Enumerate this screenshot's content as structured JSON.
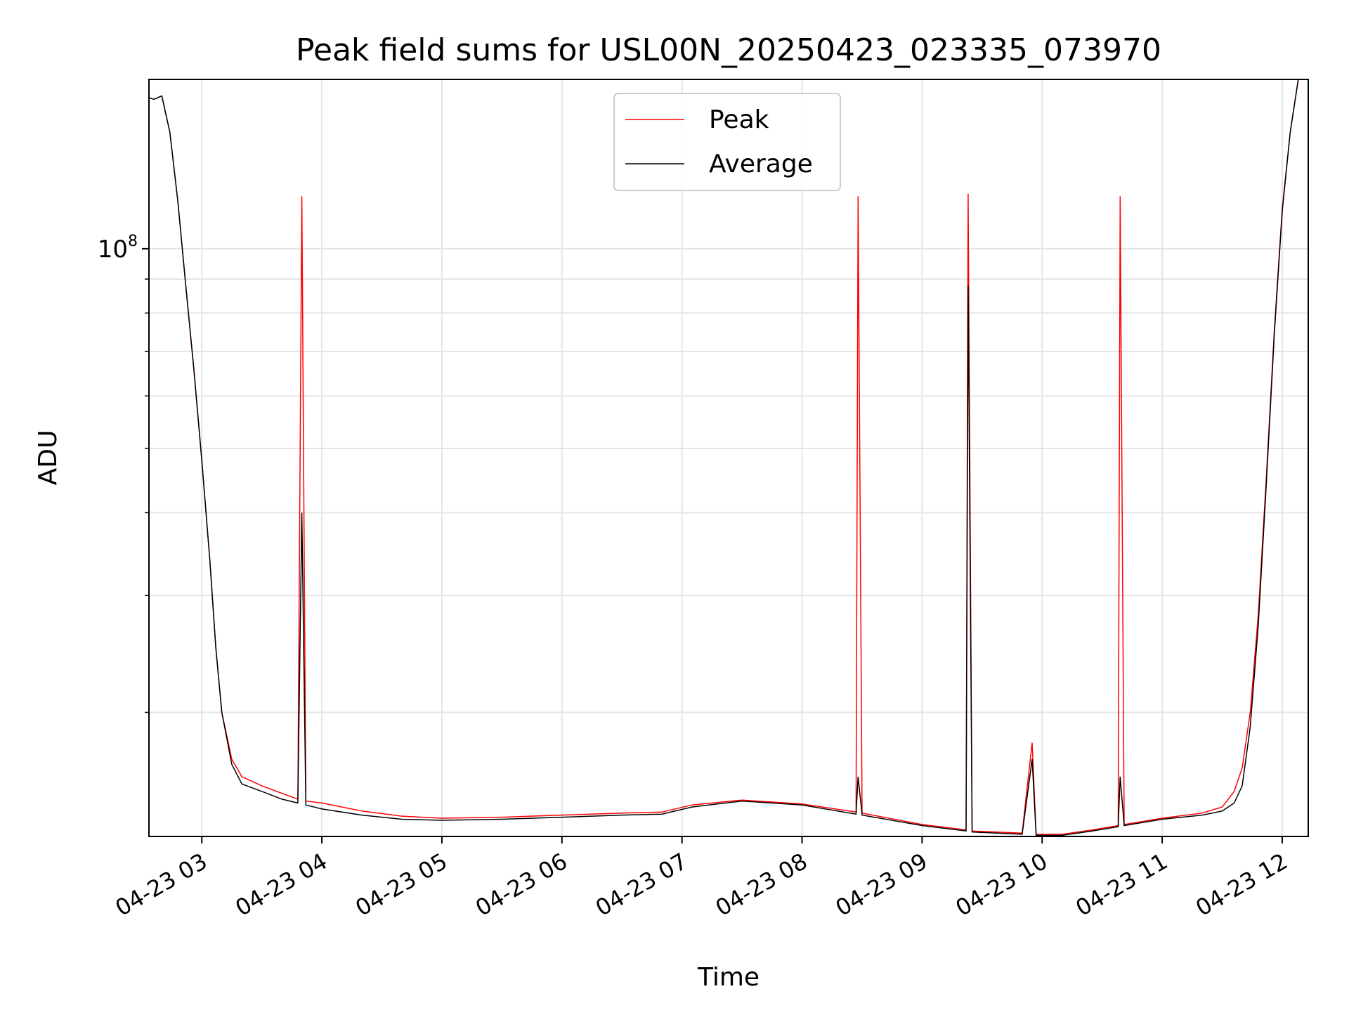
{
  "chart_data": {
    "type": "line",
    "title": "Peak field sums for USL00N_20250423_023335_073970",
    "xlabel": "Time",
    "ylabel": "ADU",
    "y_scale": "log",
    "grid": true,
    "legend_position": "top-center",
    "x_range": [
      "04-23 02:33:35",
      "04-23 12:13:00"
    ],
    "y_range": [
      13000000,
      180000000
    ],
    "x_ticks": [
      {
        "label": "04-23 03",
        "value": "04-23 03:00"
      },
      {
        "label": "04-23 04",
        "value": "04-23 04:00"
      },
      {
        "label": "04-23 05",
        "value": "04-23 05:00"
      },
      {
        "label": "04-23 06",
        "value": "04-23 06:00"
      },
      {
        "label": "04-23 07",
        "value": "04-23 07:00"
      },
      {
        "label": "04-23 08",
        "value": "04-23 08:00"
      },
      {
        "label": "04-23 09",
        "value": "04-23 09:00"
      },
      {
        "label": "04-23 10",
        "value": "04-23 10:00"
      },
      {
        "label": "04-23 11",
        "value": "04-23 11:00"
      },
      {
        "label": "04-23 12",
        "value": "04-23 12:00"
      }
    ],
    "y_ticks": [
      {
        "label": "10",
        "sup": "8",
        "value": 100000000
      }
    ],
    "y_minor_ticks": [
      20000000,
      30000000,
      40000000,
      50000000,
      60000000,
      70000000,
      80000000,
      90000000
    ],
    "series": [
      {
        "name": "Peak",
        "color": "#ff0000",
        "points": [
          [
            "04-23 02:33:35",
            169000000
          ],
          [
            "04-23 02:36",
            168000000
          ],
          [
            "04-23 02:40",
            170000000
          ],
          [
            "04-23 02:44",
            150000000
          ],
          [
            "04-23 02:48",
            118000000
          ],
          [
            "04-23 02:52",
            88000000
          ],
          [
            "04-23 02:56",
            66000000
          ],
          [
            "04-23 03:00",
            48000000
          ],
          [
            "04-23 03:04",
            34000000
          ],
          [
            "04-23 03:07",
            25000000
          ],
          [
            "04-23 03:10",
            20000000
          ],
          [
            "04-23 03:15",
            17000000
          ],
          [
            "04-23 03:20",
            16000000
          ],
          [
            "04-23 03:30",
            15500000
          ],
          [
            "04-23 03:40",
            15100000
          ],
          [
            "04-23 03:48",
            14800000
          ],
          [
            "04-23 03:50",
            120000000
          ],
          [
            "04-23 03:52",
            14700000
          ],
          [
            "04-23 04:00",
            14600000
          ],
          [
            "04-23 04:20",
            14200000
          ],
          [
            "04-23 04:40",
            13950000
          ],
          [
            "04-23 05:00",
            13850000
          ],
          [
            "04-23 05:30",
            13900000
          ],
          [
            "04-23 06:00",
            14000000
          ],
          [
            "04-23 06:30",
            14100000
          ],
          [
            "04-23 06:50",
            14150000
          ],
          [
            "04-23 07:05",
            14500000
          ],
          [
            "04-23 07:30",
            14750000
          ],
          [
            "04-23 08:00",
            14550000
          ],
          [
            "04-23 08:27",
            14150000
          ],
          [
            "04-23 08:28",
            120000000
          ],
          [
            "04-23 08:30",
            14100000
          ],
          [
            "04-23 09:00",
            13550000
          ],
          [
            "04-23 09:22",
            13300000
          ],
          [
            "04-23 09:23",
            121000000
          ],
          [
            "04-23 09:25",
            13250000
          ],
          [
            "04-23 09:50",
            13150000
          ],
          [
            "04-23 09:55",
            18000000
          ],
          [
            "04-23 09:57",
            13100000
          ],
          [
            "04-23 10:10",
            13100000
          ],
          [
            "04-23 10:25",
            13300000
          ],
          [
            "04-23 10:38",
            13500000
          ],
          [
            "04-23 10:39",
            120000000
          ],
          [
            "04-23 10:41",
            13550000
          ],
          [
            "04-23 11:00",
            13850000
          ],
          [
            "04-23 11:20",
            14100000
          ],
          [
            "04-23 11:30",
            14400000
          ],
          [
            "04-23 11:36",
            15200000
          ],
          [
            "04-23 11:40",
            16500000
          ],
          [
            "04-23 11:44",
            20000000
          ],
          [
            "04-23 11:48",
            28000000
          ],
          [
            "04-23 11:52",
            45000000
          ],
          [
            "04-23 11:56",
            75000000
          ],
          [
            "04-23 12:00",
            115000000
          ],
          [
            "04-23 12:04",
            150000000
          ],
          [
            "04-23 12:08",
            180000000
          ]
        ]
      },
      {
        "name": "Average",
        "color": "#000000",
        "points": [
          [
            "04-23 02:33:35",
            169000000
          ],
          [
            "04-23 02:36",
            168000000
          ],
          [
            "04-23 02:40",
            170000000
          ],
          [
            "04-23 02:44",
            150000000
          ],
          [
            "04-23 02:48",
            118000000
          ],
          [
            "04-23 02:52",
            88000000
          ],
          [
            "04-23 02:56",
            66000000
          ],
          [
            "04-23 03:00",
            48000000
          ],
          [
            "04-23 03:04",
            34000000
          ],
          [
            "04-23 03:07",
            25000000
          ],
          [
            "04-23 03:10",
            20000000
          ],
          [
            "04-23 03:15",
            16700000
          ],
          [
            "04-23 03:20",
            15600000
          ],
          [
            "04-23 03:30",
            15200000
          ],
          [
            "04-23 03:40",
            14800000
          ],
          [
            "04-23 03:48",
            14600000
          ],
          [
            "04-23 03:50",
            40000000
          ],
          [
            "04-23 03:52",
            14500000
          ],
          [
            "04-23 04:00",
            14300000
          ],
          [
            "04-23 04:20",
            14000000
          ],
          [
            "04-23 04:40",
            13800000
          ],
          [
            "04-23 05:00",
            13750000
          ],
          [
            "04-23 05:30",
            13800000
          ],
          [
            "04-23 06:00",
            13900000
          ],
          [
            "04-23 06:30",
            14000000
          ],
          [
            "04-23 06:50",
            14050000
          ],
          [
            "04-23 07:05",
            14400000
          ],
          [
            "04-23 07:30",
            14700000
          ],
          [
            "04-23 08:00",
            14500000
          ],
          [
            "04-23 08:27",
            14050000
          ],
          [
            "04-23 08:28",
            16000000
          ],
          [
            "04-23 08:30",
            14000000
          ],
          [
            "04-23 09:00",
            13500000
          ],
          [
            "04-23 09:22",
            13250000
          ],
          [
            "04-23 09:23",
            88000000
          ],
          [
            "04-23 09:25",
            13200000
          ],
          [
            "04-23 09:50",
            13100000
          ],
          [
            "04-23 09:55",
            17000000
          ],
          [
            "04-23 09:57",
            13050000
          ],
          [
            "04-23 10:10",
            13050000
          ],
          [
            "04-23 10:25",
            13250000
          ],
          [
            "04-23 10:38",
            13450000
          ],
          [
            "04-23 10:39",
            16000000
          ],
          [
            "04-23 10:41",
            13500000
          ],
          [
            "04-23 11:00",
            13800000
          ],
          [
            "04-23 11:20",
            14000000
          ],
          [
            "04-23 11:30",
            14200000
          ],
          [
            "04-23 11:36",
            14600000
          ],
          [
            "04-23 11:40",
            15500000
          ],
          [
            "04-23 11:44",
            19000000
          ],
          [
            "04-23 11:48",
            27000000
          ],
          [
            "04-23 11:52",
            44000000
          ],
          [
            "04-23 11:56",
            74000000
          ],
          [
            "04-23 12:00",
            114000000
          ],
          [
            "04-23 12:04",
            150000000
          ],
          [
            "04-23 12:08",
            180000000
          ]
        ]
      }
    ]
  }
}
